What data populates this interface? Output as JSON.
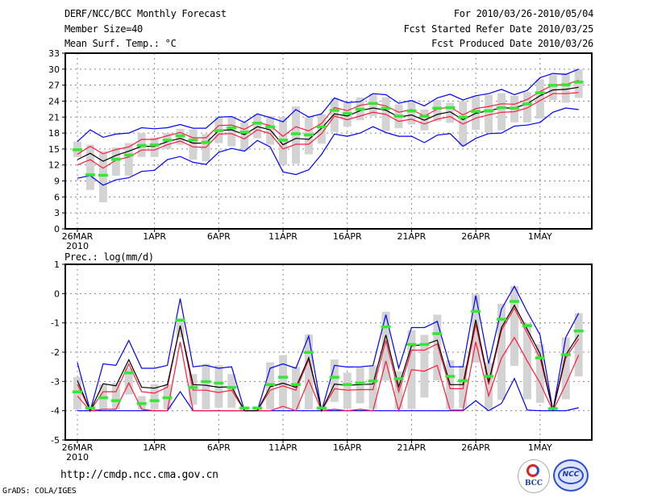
{
  "header": {
    "title": "DERF/NCC/BCC Monthly Forecast",
    "member_size": "Member Size=40",
    "variable": "Mean Surf. Temp.: °C",
    "period": "For 2010/03/26-2010/05/04",
    "start_date": "Fcst Started Refer Date 2010/03/25",
    "produced_date": "Fcst Produced Date 2010/03/26"
  },
  "footer": {
    "url": "http://cmdp.ncc.cma.gov.cn",
    "grads": "GrADS: COLA/IGES",
    "logo_bcc": "BCC",
    "logo_ncc": "NCC"
  },
  "colors": {
    "mean": "#000000",
    "spread": "#ff1a3c",
    "extreme": "#0000ff",
    "box": "#d3d3d3",
    "marker": "#33e833",
    "grid": "#888888"
  },
  "chart_data": [
    {
      "type": "line",
      "title": "Mean Surf. Temp.: °C",
      "ylim": [
        0,
        33
      ],
      "yticks": [
        0,
        3,
        6,
        9,
        12,
        15,
        18,
        21,
        24,
        27,
        30,
        33
      ],
      "xticks": [
        {
          "day": 0,
          "label": "26MAR",
          "sub": "2010"
        },
        {
          "day": 6,
          "label": "1APR"
        },
        {
          "day": 11,
          "label": "6APR"
        },
        {
          "day": 16,
          "label": "11APR"
        },
        {
          "day": 21,
          "label": "16APR"
        },
        {
          "day": 26,
          "label": "21APR"
        },
        {
          "day": 31,
          "label": "26APR"
        },
        {
          "day": 36,
          "label": "1MAY"
        }
      ],
      "grid": true,
      "series": [
        {
          "name": "ensemble mean",
          "role": "mean",
          "values": [
            13.0,
            14.2,
            12.7,
            13.8,
            14.6,
            15.5,
            15.5,
            16.4,
            17.0,
            16.1,
            16.1,
            18.5,
            18.6,
            17.7,
            19.2,
            18.6,
            15.8,
            17.0,
            16.8,
            18.9,
            21.6,
            21.2,
            22.2,
            22.7,
            22.3,
            21.0,
            21.4,
            20.4,
            21.5,
            22.0,
            20.5,
            21.7,
            22.2,
            22.7,
            22.7,
            23.5,
            25.0,
            26.1,
            26.2,
            26.6
          ]
        },
        {
          "name": "upper spread",
          "role": "spread",
          "values": [
            14.0,
            15.5,
            14.1,
            14.9,
            15.4,
            16.8,
            16.8,
            17.5,
            18.1,
            17.1,
            17.1,
            19.4,
            19.5,
            18.7,
            20.0,
            19.4,
            17.4,
            19.2,
            18.4,
            19.8,
            22.8,
            22.2,
            23.2,
            23.6,
            23.1,
            21.9,
            22.4,
            21.2,
            22.5,
            22.9,
            21.4,
            22.6,
            23.0,
            23.5,
            23.4,
            24.3,
            25.8,
            27.0,
            27.1,
            27.9
          ]
        },
        {
          "name": "lower spread",
          "role": "spread",
          "values": [
            12.0,
            13.0,
            11.4,
            12.9,
            13.5,
            14.8,
            14.8,
            15.8,
            16.5,
            15.4,
            15.3,
            17.8,
            17.9,
            16.9,
            18.6,
            17.9,
            15.0,
            15.9,
            15.9,
            17.9,
            21.2,
            20.5,
            21.2,
            21.9,
            21.5,
            20.2,
            20.6,
            19.7,
            20.6,
            21.1,
            19.7,
            20.8,
            21.4,
            21.9,
            22.0,
            22.7,
            24.1,
            25.4,
            25.4,
            25.6
          ]
        },
        {
          "name": "maximum",
          "role": "extreme",
          "values": [
            16.4,
            18.6,
            17.2,
            17.8,
            18.0,
            19.0,
            18.8,
            19.0,
            19.6,
            18.9,
            18.9,
            21.0,
            21.1,
            20.0,
            21.6,
            20.9,
            20.1,
            22.4,
            21.0,
            21.6,
            24.6,
            23.7,
            23.9,
            25.4,
            25.2,
            23.6,
            24.1,
            23.1,
            24.6,
            25.3,
            24.2,
            25.0,
            25.4,
            26.2,
            25.2,
            26.0,
            28.4,
            29.2,
            29.0,
            30.0
          ]
        },
        {
          "name": "minimum",
          "role": "extreme",
          "values": [
            9.5,
            10.0,
            8.2,
            9.2,
            9.6,
            10.8,
            11.0,
            13.0,
            13.6,
            12.5,
            12.1,
            14.4,
            15.1,
            14.6,
            16.6,
            15.4,
            10.7,
            10.2,
            11.1,
            14.0,
            17.8,
            17.4,
            18.0,
            19.2,
            18.1,
            17.4,
            17.4,
            16.2,
            17.6,
            17.9,
            15.5,
            17.0,
            17.9,
            18.0,
            19.3,
            19.5,
            20.0,
            21.9,
            22.7,
            22.4
          ]
        },
        {
          "name": "markers",
          "role": "marker",
          "values": [
            14.9,
            10.2,
            10.1,
            13.1,
            13.9,
            15.7,
            15.8,
            16.7,
            17.5,
            16.7,
            16.3,
            18.5,
            19.0,
            18.2,
            19.9,
            19.2,
            16.7,
            17.9,
            17.7,
            19.2,
            22.3,
            21.7,
            22.5,
            23.6,
            22.7,
            21.2,
            22.2,
            21.2,
            22.7,
            22.8,
            21.0,
            22.1,
            22.2,
            22.8,
            22.7,
            23.5,
            25.6,
            27.0,
            27.1,
            27.6
          ]
        }
      ],
      "boxes": [
        [
          13.5,
          16.4
        ],
        [
          7.3,
          15.8
        ],
        [
          5.0,
          14.6
        ],
        [
          10.0,
          15.3
        ],
        [
          10.0,
          16.1
        ],
        [
          13.5,
          18.0
        ],
        [
          13.5,
          17.2
        ],
        [
          15.0,
          18.0
        ],
        [
          15.8,
          18.8
        ],
        [
          13.0,
          18.7
        ],
        [
          12.7,
          17.8
        ],
        [
          16.1,
          21.0
        ],
        [
          15.5,
          21.0
        ],
        [
          14.7,
          20.0
        ],
        [
          17.0,
          21.5
        ],
        [
          15.8,
          21.2
        ],
        [
          12.0,
          21.0
        ],
        [
          12.2,
          23.0
        ],
        [
          14.0,
          21.0
        ],
        [
          16.0,
          21.5
        ],
        [
          18.2,
          24.5
        ],
        [
          19.2,
          23.8
        ],
        [
          20.4,
          24.7
        ],
        [
          21.2,
          25.4
        ],
        [
          18.4,
          24.7
        ],
        [
          18.9,
          23.4
        ],
        [
          19.6,
          24.2
        ],
        [
          18.5,
          22.4
        ],
        [
          20.2,
          24.2
        ],
        [
          19.9,
          23.7
        ],
        [
          15.6,
          24.0
        ],
        [
          18.6,
          25.0
        ],
        [
          18.1,
          25.2
        ],
        [
          18.5,
          25.5
        ],
        [
          20.0,
          25.0
        ],
        [
          20.0,
          25.7
        ],
        [
          20.7,
          28.1
        ],
        [
          24.2,
          29.0
        ],
        [
          23.7,
          29.3
        ],
        [
          24.6,
          30.0
        ]
      ]
    },
    {
      "type": "line",
      "title": "Prec.: log(mm/d)",
      "ylim": [
        -5,
        1
      ],
      "yticks": [
        -5,
        -4,
        -3,
        -2,
        -1,
        0,
        1
      ],
      "xticks": [
        {
          "day": 0,
          "label": "26MAR",
          "sub": "2010"
        },
        {
          "day": 6,
          "label": "1APR"
        },
        {
          "day": 11,
          "label": "6APR"
        },
        {
          "day": 16,
          "label": "11APR"
        },
        {
          "day": 21,
          "label": "16APR"
        },
        {
          "day": 26,
          "label": "21APR"
        },
        {
          "day": 31,
          "label": "26APR"
        },
        {
          "day": 36,
          "label": "1MAY"
        }
      ],
      "grid": true,
      "series": [
        {
          "name": "ensemble mean",
          "role": "mean",
          "values": [
            -2.97,
            -4,
            -3.08,
            -3.15,
            -2.26,
            -3.2,
            -3.23,
            -3.11,
            -1.1,
            -3.11,
            -3.13,
            -3.2,
            -3.18,
            -4,
            -4,
            -3.18,
            -3.06,
            -3.2,
            -2.19,
            -4,
            -3.09,
            -3.13,
            -3.11,
            -3.09,
            -1.41,
            -3.18,
            -1.78,
            -1.75,
            -1.59,
            -3.11,
            -3.11,
            -0.9,
            -3.02,
            -1.16,
            -0.4,
            -1.22,
            -2.05,
            -4,
            -2.1,
            -1.41
          ]
        },
        {
          "name": "upper spread",
          "role": "spread",
          "values": [
            -3.1,
            -4,
            -3.35,
            -3.35,
            -2.4,
            -3.35,
            -3.4,
            -3.2,
            -1.1,
            -3.3,
            -3.3,
            -3.38,
            -3.3,
            -4,
            -4,
            -3.3,
            -3.15,
            -3.3,
            -2.25,
            -4,
            -3.25,
            -3.3,
            -3.28,
            -3.28,
            -1.6,
            -3.35,
            -1.93,
            -1.93,
            -1.72,
            -3.25,
            -3.25,
            -1.05,
            -3.1,
            -1.25,
            -0.5,
            -1.35,
            -2.2,
            -4,
            -2.2,
            -1.55
          ]
        },
        {
          "name": "lower spread",
          "role": "spread",
          "values": [
            -3.5,
            -4,
            -3.95,
            -3.95,
            -3.05,
            -3.95,
            -4,
            -4,
            -1.65,
            -4,
            -4,
            -4,
            -4,
            -4,
            -4,
            -4,
            -3.85,
            -4,
            -2.95,
            -4,
            -3.95,
            -4,
            -3.95,
            -4,
            -2.3,
            -4,
            -2.6,
            -2.65,
            -2.45,
            -3.98,
            -3.98,
            -1.65,
            -3.5,
            -2.2,
            -1.5,
            -2.3,
            -3.05,
            -4,
            -3.1,
            -2.1
          ]
        },
        {
          "name": "maximum",
          "role": "extreme",
          "values": [
            -2.36,
            -4,
            -2.4,
            -2.45,
            -1.6,
            -2.55,
            -2.55,
            -2.45,
            -0.17,
            -2.5,
            -2.45,
            -2.55,
            -2.5,
            -4,
            -4,
            -2.55,
            -2.4,
            -2.55,
            -1.45,
            -4,
            -2.45,
            -2.51,
            -2.5,
            -2.46,
            -0.72,
            -2.55,
            -1.16,
            -1.16,
            -0.95,
            -2.5,
            -2.5,
            -0.07,
            -2.39,
            -0.53,
            0.25,
            -0.62,
            -1.41,
            -4,
            -1.5,
            -0.67
          ]
        },
        {
          "name": "minimum",
          "role": "extreme",
          "values": [
            -4,
            -4,
            -4,
            -4,
            -4,
            -4,
            -4,
            -4,
            -3.35,
            -4,
            -4,
            -4,
            -4,
            -4,
            -4,
            -4,
            -4,
            -4,
            -4,
            -4,
            -4,
            -4,
            -4,
            -4,
            -4,
            -4,
            -4,
            -4,
            -4,
            -4,
            -4,
            -3.66,
            -4,
            -3.75,
            -2.9,
            -3.98,
            -4,
            -4,
            -4,
            -3.9
          ]
        },
        {
          "name": "markers",
          "role": "marker",
          "values": [
            -3.35,
            -3.9,
            -3.55,
            -3.65,
            -2.7,
            -3.75,
            -3.65,
            -3.55,
            -0.9,
            -3.2,
            -3.0,
            -3.05,
            -3.2,
            -3.9,
            -3.9,
            -3.1,
            -2.85,
            -3.1,
            -2.0,
            -3.9,
            -2.85,
            -3.1,
            -3.05,
            -2.98,
            -1.13,
            -2.9,
            -1.73,
            -1.73,
            -1.36,
            -2.82,
            -2.97,
            -0.6,
            -2.82,
            -0.87,
            -0.26,
            -1.09,
            -2.19,
            -3.92,
            -2.08,
            -1.27
          ]
        }
      ],
      "boxes": [
        [
          -3.95,
          -2.85
        ],
        [
          -4,
          -3.9
        ],
        [
          -3.95,
          -3.1
        ],
        [
          -3.95,
          -3.05
        ],
        [
          -3.45,
          -2.55
        ],
        [
          -3.95,
          -3.5
        ],
        [
          -3.95,
          -3.1
        ],
        [
          -3.95,
          -3.1
        ],
        [
          -1.5,
          -0.85
        ],
        [
          -3.8,
          -2.75
        ],
        [
          -3.95,
          -2.4
        ],
        [
          -3.9,
          -2.45
        ],
        [
          -3.9,
          -2.75
        ],
        [
          -4,
          -3.9
        ],
        [
          -4,
          -3.9
        ],
        [
          -3.95,
          -2.35
        ],
        [
          -3.95,
          -2.1
        ],
        [
          -3.95,
          -2.5
        ],
        [
          -3.95,
          -1.4
        ],
        [
          -4,
          -3.9
        ],
        [
          -3.7,
          -2.25
        ],
        [
          -3.94,
          -2.7
        ],
        [
          -3.75,
          -2.51
        ],
        [
          -3.94,
          -2.46
        ],
        [
          -2.97,
          -0.62
        ],
        [
          -3.94,
          -2.65
        ],
        [
          -3.94,
          -1.25
        ],
        [
          -3.55,
          -1.41
        ],
        [
          -2.97,
          -0.72
        ],
        [
          -3.94,
          -2.28
        ],
        [
          -3.9,
          -2.46
        ],
        [
          -2.36,
          -0.03
        ],
        [
          -3.94,
          -2.37
        ],
        [
          -3.63,
          -0.35
        ],
        [
          -2.47,
          0.25
        ],
        [
          -3.61,
          -1.0
        ],
        [
          -3.73,
          -1.73
        ],
        [
          -4,
          -3.9
        ],
        [
          -3.61,
          -1.5
        ],
        [
          -2.83,
          -0.67
        ]
      ]
    }
  ]
}
